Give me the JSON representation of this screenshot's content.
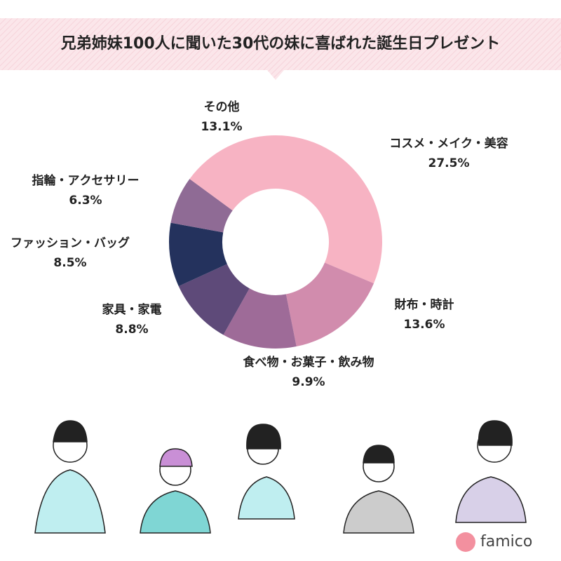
{
  "chart_data": {
    "type": "donut",
    "title": "兄弟姉妹100人に聞いた30代の妹に喜ばれた誕生日プレゼント",
    "categories": [
      "コスメ・メイク・美容",
      "財布・時計",
      "食べ物・お菓子・飲み物",
      "家具・家電",
      "ファッション・バッグ",
      "指輪・アクセサリー",
      "その他"
    ],
    "values": [
      27.5,
      13.6,
      9.9,
      8.8,
      8.5,
      6.3,
      13.1
    ],
    "value_labels": [
      "27.5%",
      "13.6%",
      "9.9%",
      "8.8%",
      "8.5%",
      "6.3%",
      "13.1%"
    ],
    "colors": [
      "#f7b3c3",
      "#d18cad",
      "#9e6b98",
      "#5e4a79",
      "#24325d",
      "#8f6b95",
      "#f7b3c3"
    ]
  },
  "logo": "famico"
}
